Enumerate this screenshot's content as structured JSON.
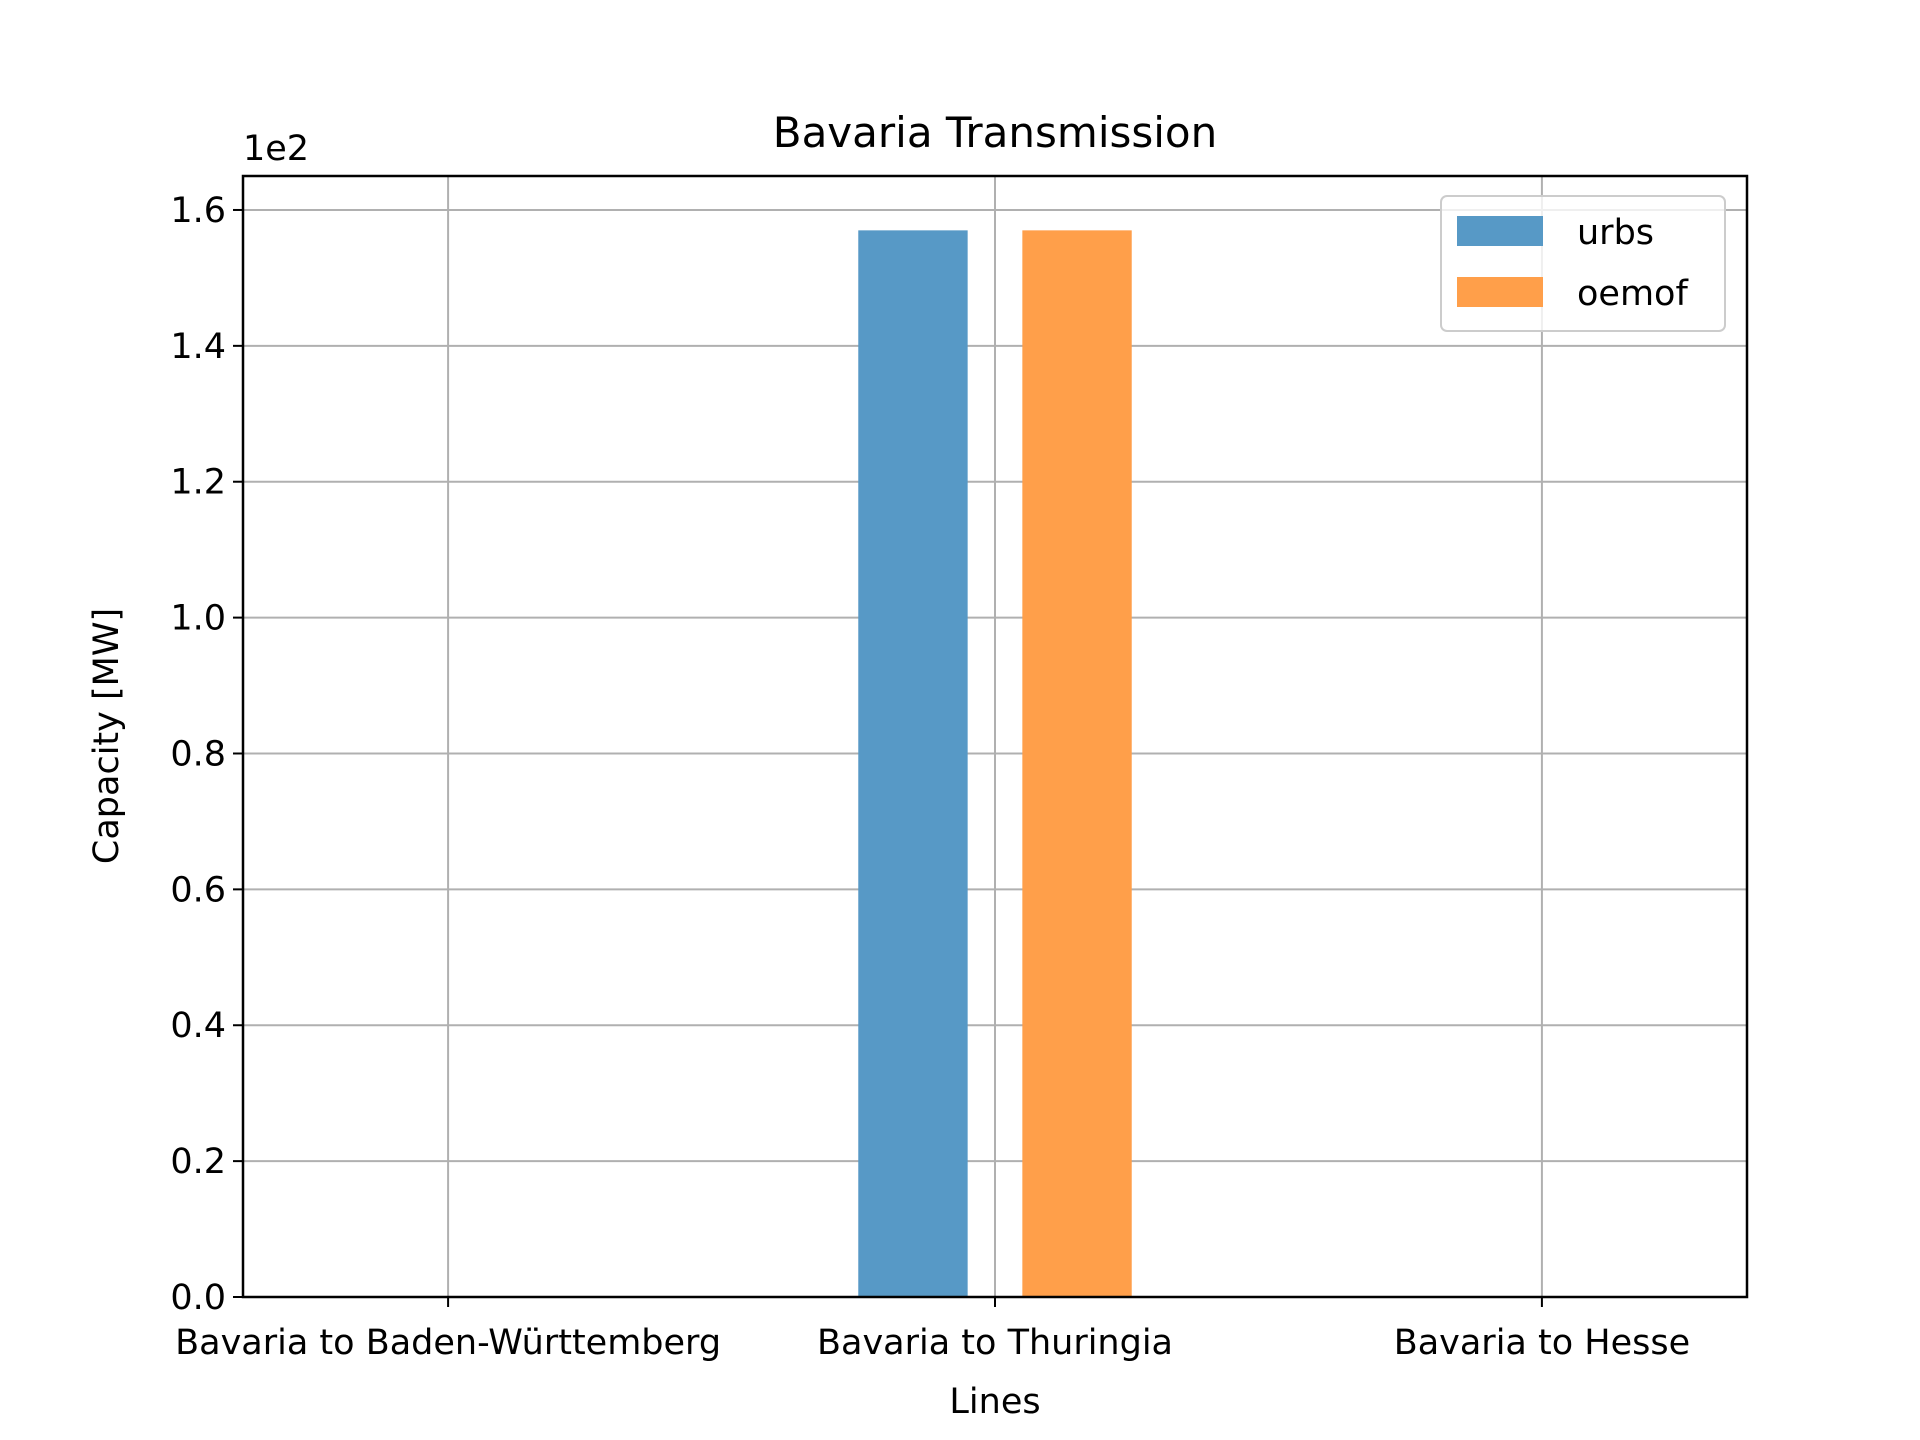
{
  "chart_data": {
    "type": "bar",
    "title": "Bavaria Transmission",
    "xlabel": "Lines",
    "ylabel": "Capacity [MW]",
    "offset_text": "1e2",
    "categories": [
      "Bavaria to Baden-Württemberg",
      "Bavaria to Thuringia",
      "Bavaria to Hesse"
    ],
    "series": [
      {
        "name": "urbs",
        "values": [
          0,
          157,
          0
        ],
        "color": "#5799c6"
      },
      {
        "name": "oemof",
        "values": [
          0,
          157,
          0
        ],
        "color": "#ff9f4a"
      }
    ],
    "ylim": [
      0,
      165
    ],
    "yticks": [
      0,
      20,
      40,
      60,
      80,
      100,
      120,
      140,
      160
    ],
    "ytick_labels": [
      "0.0",
      "0.2",
      "0.4",
      "0.6",
      "0.8",
      "1.0",
      "1.2",
      "1.4",
      "1.6"
    ],
    "grid": true,
    "legend_position": "top-right"
  }
}
